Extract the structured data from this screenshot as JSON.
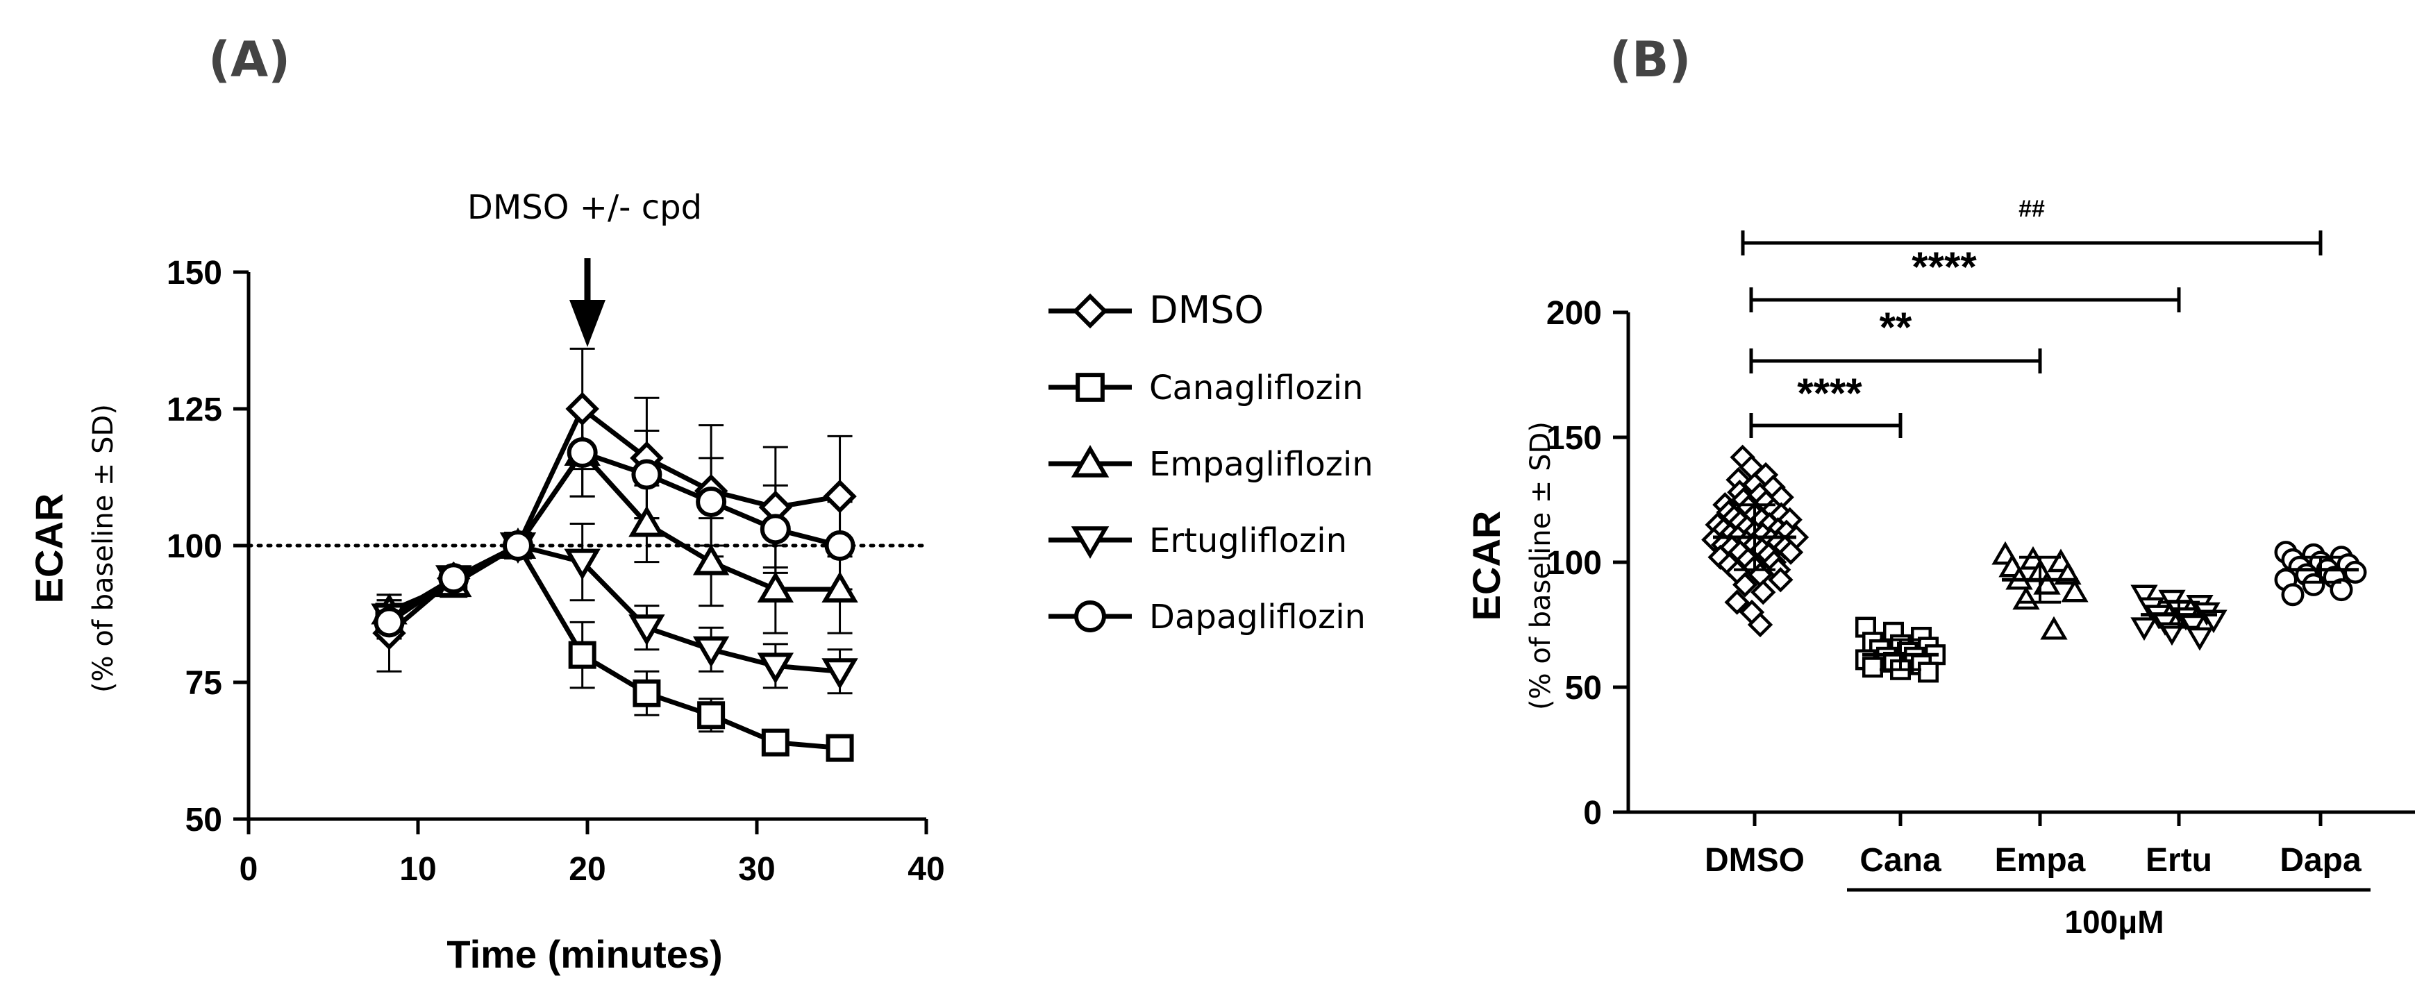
{
  "chart_data": [
    {
      "panel_label": "(A)",
      "type": "line",
      "title": "",
      "xlabel": "Time (minutes)",
      "ylabel": "ECAR",
      "ylabel_sub": "(% of baseline ± SD)",
      "xlim": [
        0,
        40
      ],
      "ylim": [
        50,
        150
      ],
      "xticks": [
        0,
        10,
        20,
        30,
        40
      ],
      "yticks": [
        50,
        75,
        100,
        125,
        150
      ],
      "reference_line": 100,
      "annotation": "DMSO +/- cpd",
      "annotation_x": 20,
      "x": [
        8.3,
        12.1,
        15.9,
        19.7,
        23.5,
        27.3,
        31.1,
        34.9
      ],
      "series": [
        {
          "name": "DMSO",
          "marker": "diamond",
          "values": [
            84,
            94,
            100,
            125,
            116,
            110,
            107,
            109
          ],
          "sd": [
            7,
            2,
            1,
            11,
            11,
            12,
            11,
            11
          ]
        },
        {
          "name": "Canagliflozin",
          "marker": "square",
          "values": [
            87,
            93,
            100,
            80,
            73,
            69,
            64,
            63
          ],
          "sd": [
            3,
            2,
            1,
            6,
            4,
            3,
            2,
            2
          ]
        },
        {
          "name": "Empagliflozin",
          "marker": "triangle-up",
          "values": [
            88,
            93,
            100,
            117,
            104,
            97,
            92,
            92
          ],
          "sd": [
            3,
            2,
            1,
            8,
            7,
            8,
            8,
            8
          ]
        },
        {
          "name": "Ertugliflozin",
          "marker": "triangle-down",
          "values": [
            87,
            94,
            100,
            97,
            85,
            81,
            78,
            77
          ],
          "sd": [
            3,
            2,
            1,
            7,
            4,
            4,
            4,
            4
          ]
        },
        {
          "name": "Dapagliflozin",
          "marker": "circle",
          "values": [
            86,
            94,
            100,
            117,
            113,
            108,
            103,
            100
          ],
          "sd": [
            3,
            2,
            1,
            8,
            8,
            8,
            8,
            8
          ]
        }
      ]
    },
    {
      "panel_label": "(B)",
      "type": "scatter",
      "title": "",
      "xlabel": "",
      "ylabel": "ECAR",
      "ylabel_sub": "(% of baseline ± SD)",
      "ylim": [
        0,
        200
      ],
      "yticks": [
        0,
        50,
        100,
        150,
        200
      ],
      "categories": [
        "DMSO",
        "Cana",
        "Empa",
        "Ertu",
        "Dapa"
      ],
      "group_label": "100μM",
      "groups": [
        {
          "name": "DMSO",
          "marker": "diamond",
          "mean": 110,
          "sd": 13,
          "values": [
            142,
            138,
            135,
            133,
            131,
            130,
            128,
            127,
            126,
            125,
            124,
            123,
            122,
            121,
            120,
            119,
            119,
            118,
            117,
            117,
            116,
            115,
            115,
            114,
            113,
            113,
            112,
            112,
            111,
            111,
            110,
            110,
            109,
            109,
            108,
            108,
            107,
            107,
            106,
            106,
            105,
            104,
            104,
            103,
            102,
            101,
            100,
            99,
            98,
            97,
            96,
            95,
            93,
            91,
            88,
            84,
            80,
            75
          ]
        },
        {
          "name": "Cana",
          "marker": "square",
          "mean": 63,
          "sd": 6,
          "values": [
            74,
            72,
            70,
            68,
            67,
            66,
            65,
            64,
            63,
            62,
            62,
            61,
            60,
            59,
            58,
            57,
            56
          ]
        },
        {
          "name": "Empa",
          "marker": "triangle-up",
          "mean": 93,
          "sd": 9,
          "values": [
            103,
            101,
            100,
            98,
            96,
            95,
            93,
            91,
            88,
            85,
            73
          ]
        },
        {
          "name": "Ertu",
          "marker": "triangle-down",
          "mean": 79,
          "sd": 5,
          "values": [
            87,
            85,
            83,
            82,
            81,
            80,
            79,
            78,
            77,
            76,
            75,
            74,
            72,
            70
          ]
        },
        {
          "name": "Dapa",
          "marker": "circle",
          "mean": 97,
          "sd": 5,
          "values": [
            104,
            103,
            102,
            101,
            100,
            99,
            98,
            97,
            96,
            95,
            94,
            93,
            91,
            89,
            87
          ]
        }
      ],
      "significance": [
        {
          "from": "DMSO",
          "to": "Dapa",
          "label": "##"
        },
        {
          "from": "DMSO",
          "to": "Ertu",
          "label": "****"
        },
        {
          "from": "DMSO",
          "to": "Empa",
          "label": "**"
        },
        {
          "from": "DMSO",
          "to": "Cana",
          "label": "****"
        }
      ]
    }
  ]
}
